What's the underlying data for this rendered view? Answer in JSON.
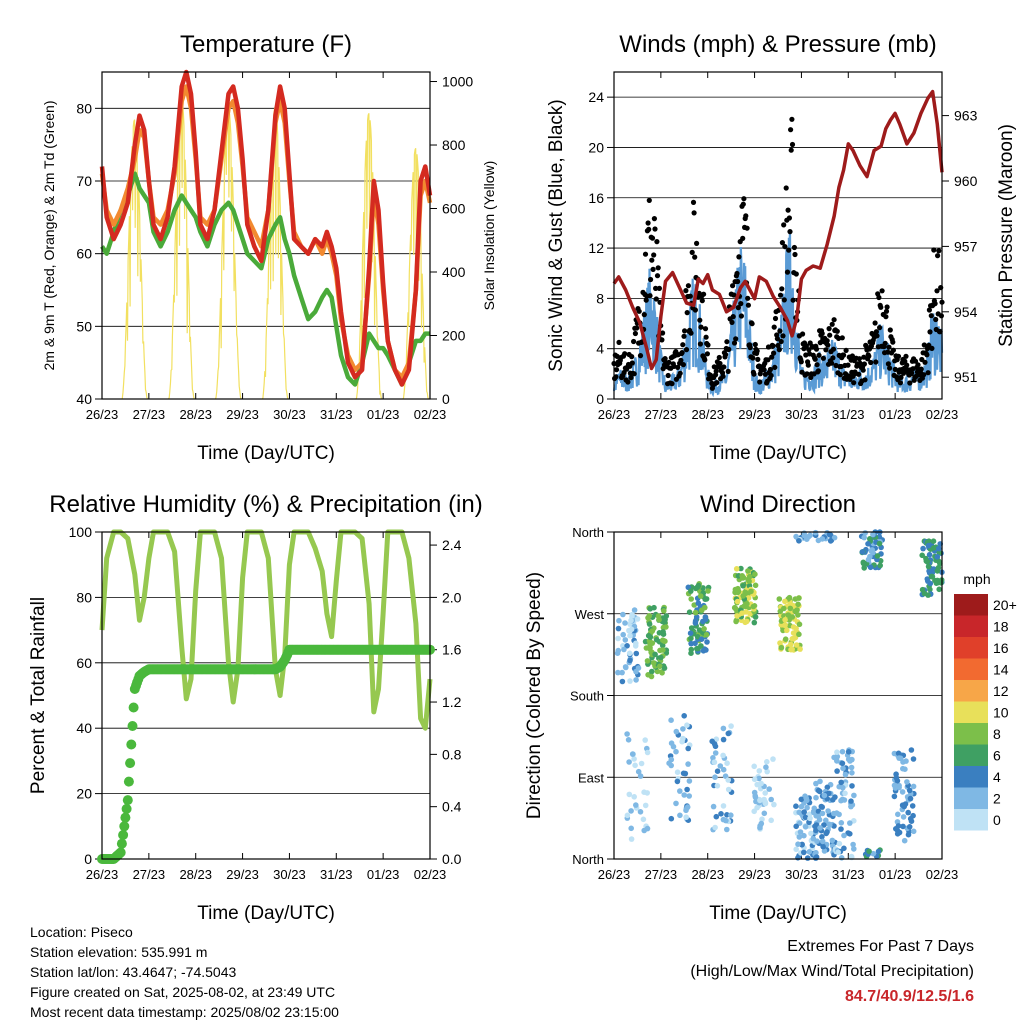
{
  "x_ticks": [
    "26/23",
    "27/23",
    "28/23",
    "29/23",
    "30/23",
    "31/23",
    "01/23",
    "02/23"
  ],
  "x_label": "Time (Day/UTC)",
  "colors": {
    "temp_2m": "#d42a20",
    "temp_9m": "#f28a30",
    "dewpoint": "#4aaa3a",
    "insolation": "#f2e060",
    "wind": "#5a9bd5",
    "gust": "#000000",
    "pressure": "#9e1b1b",
    "rh": "#96c850",
    "precip": "#4ab83c"
  },
  "chart_data": [
    {
      "type": "line",
      "title": "Temperature (F)",
      "xlabel": "Time (Day/UTC)",
      "ylabel": "2m & 9m T (Red, Orange) & 2m Td (Green)",
      "ylim": [
        40,
        85
      ],
      "yticks": [
        40,
        50,
        60,
        70,
        80
      ],
      "y2label": "Solar Insolation (Yellow)",
      "y2lim": [
        0,
        1030
      ],
      "y2ticks": [
        0,
        200,
        400,
        600,
        800,
        1000
      ],
      "x": [
        0,
        0.1,
        0.25,
        0.4,
        0.55,
        0.7,
        0.8,
        0.9,
        1.0,
        1.1,
        1.25,
        1.4,
        1.55,
        1.7,
        1.8,
        1.9,
        2.0,
        2.1,
        2.25,
        2.4,
        2.55,
        2.7,
        2.8,
        2.9,
        3.0,
        3.1,
        3.25,
        3.4,
        3.55,
        3.7,
        3.8,
        3.9,
        4.0,
        4.1,
        4.25,
        4.4,
        4.55,
        4.7,
        4.8,
        4.9,
        5.0,
        5.1,
        5.25,
        5.4,
        5.55,
        5.7,
        5.8,
        5.9,
        6.0,
        6.1,
        6.25,
        6.4,
        6.55,
        6.7,
        6.8,
        6.9,
        7.0
      ],
      "series": [
        {
          "name": "2m T",
          "values": [
            72,
            65,
            62,
            64,
            67,
            75,
            79,
            77,
            70,
            64,
            62,
            65,
            72,
            83,
            85,
            82,
            74,
            64,
            62,
            66,
            74,
            82,
            83,
            80,
            73,
            64,
            61,
            59,
            66,
            79,
            83,
            80,
            71,
            62,
            61,
            60,
            62,
            61,
            63,
            61,
            58,
            52,
            45,
            43,
            44,
            58,
            70,
            66,
            56,
            48,
            44,
            42,
            44,
            55,
            70,
            72,
            68
          ]
        },
        {
          "name": "9m T",
          "values": [
            71,
            66,
            64,
            66,
            69,
            73,
            77,
            76,
            70,
            65,
            64,
            66,
            71,
            81,
            83,
            80,
            73,
            65,
            64,
            66,
            73,
            80,
            81,
            78,
            72,
            65,
            63,
            61,
            66,
            78,
            81,
            78,
            70,
            63,
            61,
            60,
            62,
            60,
            62,
            60,
            57,
            51,
            46,
            44,
            45,
            57,
            68,
            64,
            55,
            48,
            44,
            43,
            45,
            55,
            68,
            70,
            67
          ]
        },
        {
          "name": "2m Td",
          "values": [
            61,
            60,
            63,
            66,
            68,
            71,
            69,
            68,
            67,
            63,
            61,
            63,
            66,
            68,
            67,
            66,
            65,
            63,
            61,
            64,
            66,
            67,
            66,
            64,
            62,
            60,
            59,
            58,
            62,
            64,
            65,
            62,
            60,
            57,
            54,
            51,
            52,
            54,
            55,
            54,
            50,
            46,
            43,
            42,
            45,
            49,
            48,
            47,
            47,
            46,
            44,
            42,
            45,
            48,
            48,
            49,
            49
          ]
        },
        {
          "name": "Solar Insolation",
          "axis": "right",
          "daily_peaks": [
            880,
            950,
            920,
            920,
            0,
            900,
            790
          ]
        }
      ]
    },
    {
      "type": "scatter",
      "title": "Winds (mph) & Pressure (mb)",
      "xlabel": "Time (Day/UTC)",
      "ylabel": "Sonic Wind & Gust (Blue, Black)",
      "ylim": [
        0,
        26
      ],
      "yticks": [
        0,
        4,
        8,
        12,
        16,
        20,
        24
      ],
      "y2label": "Station Pressure (Maroon)",
      "y2lim": [
        950,
        965
      ],
      "y2ticks": [
        951,
        954,
        957,
        960,
        963
      ],
      "x": [
        0,
        0.1,
        0.25,
        0.4,
        0.55,
        0.7,
        0.8,
        0.9,
        1.0,
        1.1,
        1.25,
        1.4,
        1.55,
        1.7,
        1.8,
        1.9,
        2.0,
        2.1,
        2.25,
        2.4,
        2.55,
        2.7,
        2.8,
        2.9,
        3.0,
        3.1,
        3.25,
        3.4,
        3.55,
        3.7,
        3.8,
        3.9,
        4.0,
        4.1,
        4.25,
        4.4,
        4.55,
        4.7,
        4.8,
        4.9,
        5.0,
        5.1,
        5.25,
        5.4,
        5.55,
        5.7,
        5.8,
        5.9,
        6.0,
        6.1,
        6.25,
        6.4,
        6.55,
        6.7,
        6.8,
        6.9,
        7.0
      ],
      "series": [
        {
          "name": "Sonic Wind",
          "values": [
            1,
            2,
            1.5,
            2,
            4,
            7,
            9,
            6,
            3,
            1,
            1.5,
            2,
            5,
            8,
            7,
            4,
            2,
            1,
            1.5,
            2,
            6,
            10,
            9,
            5,
            2,
            1,
            2,
            3,
            5,
            10,
            11,
            6,
            2,
            2,
            2,
            3,
            3,
            4,
            3,
            2,
            2,
            1.5,
            2,
            2,
            3,
            5,
            4,
            3,
            2,
            1.5,
            1.5,
            2,
            2,
            3,
            6,
            6,
            4
          ]
        },
        {
          "name": "Gust",
          "values": [
            3,
            4,
            3,
            4,
            8,
            14,
            16,
            12,
            6,
            3,
            3,
            4,
            9,
            14,
            13,
            8,
            4,
            2,
            3,
            4,
            10,
            16,
            15,
            9,
            4,
            3,
            3,
            5,
            9,
            17,
            20,
            11,
            5,
            4,
            4,
            5,
            5,
            6,
            5,
            4,
            3,
            3,
            3,
            4,
            5,
            10,
            8,
            5,
            3,
            3,
            3,
            3,
            3,
            5,
            10,
            12,
            7
          ]
        },
        {
          "name": "Station Pressure",
          "axis": "right",
          "values": [
            955.3,
            955.6,
            955.0,
            954.2,
            953.5,
            952.3,
            951.4,
            951.8,
            953.8,
            955.4,
            955.8,
            955.1,
            954.4,
            954.3,
            955.5,
            955.3,
            955.7,
            955.0,
            954.8,
            954.0,
            954.2,
            955.1,
            955.4,
            955.0,
            954.6,
            955.6,
            955.4,
            954.7,
            954.2,
            953.6,
            952.9,
            953.7,
            955.5,
            955.9,
            956.1,
            956.0,
            957.1,
            958.4,
            959.7,
            960.5,
            961.7,
            961.4,
            960.7,
            960.2,
            961.4,
            961.6,
            962.4,
            962.8,
            963.1,
            962.6,
            961.7,
            962.2,
            963.1,
            963.8,
            964.1,
            962.6,
            960.4
          ]
        }
      ]
    },
    {
      "type": "line",
      "title": "Relative Humidity (%) & Precipitation (in)",
      "xlabel": "Time (Day/UTC)",
      "ylabel": "Percent & Total Rainfall",
      "ylim": [
        0,
        100
      ],
      "yticks": [
        0,
        20,
        40,
        60,
        80,
        100
      ],
      "y2lim": [
        0,
        2.5
      ],
      "y2ticks": [
        0.0,
        0.4,
        0.8,
        1.2,
        1.6,
        2.0,
        2.4
      ],
      "x": [
        0,
        0.1,
        0.25,
        0.4,
        0.55,
        0.7,
        0.8,
        0.9,
        1.0,
        1.1,
        1.25,
        1.4,
        1.55,
        1.7,
        1.8,
        1.9,
        2.0,
        2.1,
        2.25,
        2.4,
        2.55,
        2.7,
        2.8,
        2.9,
        3.0,
        3.1,
        3.25,
        3.4,
        3.55,
        3.7,
        3.8,
        3.9,
        4.0,
        4.1,
        4.25,
        4.4,
        4.55,
        4.7,
        4.8,
        4.9,
        5.0,
        5.1,
        5.25,
        5.4,
        5.55,
        5.7,
        5.8,
        5.9,
        6.0,
        6.1,
        6.25,
        6.4,
        6.55,
        6.7,
        6.8,
        6.9,
        7.0
      ],
      "series": [
        {
          "name": "Relative Humidity",
          "values": [
            70,
            92,
            100,
            100,
            98,
            87,
            73,
            80,
            92,
            100,
            100,
            100,
            94,
            65,
            49,
            55,
            82,
            100,
            100,
            100,
            92,
            60,
            48,
            58,
            86,
            100,
            100,
            100,
            92,
            58,
            50,
            62,
            90,
            100,
            100,
            100,
            95,
            88,
            75,
            68,
            85,
            100,
            100,
            100,
            98,
            78,
            45,
            52,
            75,
            100,
            100,
            100,
            92,
            72,
            43,
            40,
            55
          ]
        },
        {
          "name": "Total Rainfall",
          "axis": "right",
          "values": [
            0,
            0,
            0,
            0.05,
            0.45,
            1.3,
            1.4,
            1.43,
            1.45,
            1.45,
            1.45,
            1.45,
            1.45,
            1.45,
            1.45,
            1.45,
            1.45,
            1.45,
            1.45,
            1.45,
            1.45,
            1.45,
            1.45,
            1.45,
            1.45,
            1.45,
            1.45,
            1.45,
            1.45,
            1.45,
            1.47,
            1.52,
            1.6,
            1.6,
            1.6,
            1.6,
            1.6,
            1.6,
            1.6,
            1.6,
            1.6,
            1.6,
            1.6,
            1.6,
            1.6,
            1.6,
            1.6,
            1.6,
            1.6,
            1.6,
            1.6,
            1.6,
            1.6,
            1.6,
            1.6,
            1.6,
            1.6
          ]
        }
      ]
    },
    {
      "type": "scatter",
      "title": "Wind Direction",
      "xlabel": "Time (Day/UTC)",
      "ylabel": "Direction (Colored By Speed)",
      "ylim": [
        0,
        360
      ],
      "y_ticks": [
        {
          "label": "North",
          "value": 0
        },
        {
          "label": "East",
          "value": 90
        },
        {
          "label": "South",
          "value": 180
        },
        {
          "label": "West",
          "value": 270
        },
        {
          "label": "North",
          "value": 360
        }
      ],
      "colorbar": {
        "unit": "mph",
        "labels": [
          "20+",
          "18",
          "16",
          "14",
          "12",
          "10",
          "8",
          "6",
          "4",
          "2",
          "0"
        ],
        "colors": [
          "#9e1b1b",
          "#c8262a",
          "#e0402a",
          "#f26a30",
          "#f7a648",
          "#e8e05a",
          "#7cbf4a",
          "#3fa063",
          "#3a7fc0",
          "#7fb8e4",
          "#bfe2f5"
        ]
      },
      "clusters": [
        {
          "x": 0.3,
          "dir_center": 235,
          "dir_spread": 40,
          "speed": 2,
          "count": 50
        },
        {
          "x": 0.5,
          "dir_center": 80,
          "dir_spread": 60,
          "speed": 1,
          "count": 30
        },
        {
          "x": 0.9,
          "dir_center": 240,
          "dir_spread": 40,
          "speed": 7,
          "count": 80
        },
        {
          "x": 1.4,
          "dir_center": 100,
          "dir_spread": 60,
          "speed": 2,
          "count": 40
        },
        {
          "x": 1.8,
          "dir_center": 265,
          "dir_spread": 40,
          "speed": 6,
          "count": 80
        },
        {
          "x": 2.3,
          "dir_center": 90,
          "dir_spread": 60,
          "speed": 2,
          "count": 40
        },
        {
          "x": 2.8,
          "dir_center": 290,
          "dir_spread": 30,
          "speed": 8,
          "count": 100
        },
        {
          "x": 3.2,
          "dir_center": 70,
          "dir_spread": 40,
          "speed": 1,
          "count": 40
        },
        {
          "x": 3.75,
          "dir_center": 260,
          "dir_spread": 30,
          "speed": 9,
          "count": 80
        },
        {
          "x": 4.1,
          "dir_center": 30,
          "dir_spread": 40,
          "speed": 2,
          "count": 70
        },
        {
          "x": 4.5,
          "dir_center": 40,
          "dir_spread": 50,
          "speed": 3,
          "count": 80
        },
        {
          "x": 4.9,
          "dir_center": 60,
          "dir_spread": 60,
          "speed": 2,
          "count": 60
        },
        {
          "x": 5.5,
          "dir_center": 345,
          "dir_spread": 25,
          "speed": 4,
          "count": 60
        },
        {
          "x": 6.2,
          "dir_center": 70,
          "dir_spread": 50,
          "speed": 3,
          "count": 60
        },
        {
          "x": 6.8,
          "dir_center": 320,
          "dir_spread": 30,
          "speed": 5,
          "count": 70
        }
      ]
    }
  ],
  "info": {
    "location": "Location: Piseco",
    "elevation": "Station elevation: 535.991 m",
    "latlon": "Station lat/lon: 43.4647; -74.5043",
    "created": "Figure created on Sat, 2025-08-02, at 23:49 UTC",
    "recent": "Most recent data timestamp: 2025/08/02 23:15:00"
  },
  "extremes": {
    "title": "Extremes For Past 7 Days",
    "subtitle": "(High/Low/Max Wind/Total Precipitation)",
    "values": "84.7/40.9/12.5/1.6"
  }
}
